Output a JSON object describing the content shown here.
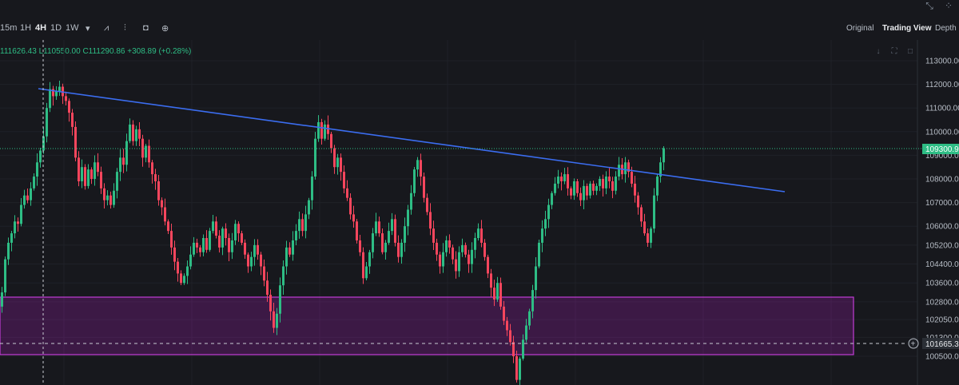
{
  "top_icons": [
    "collapse-icon",
    "grid-icon"
  ],
  "toolbar": {
    "timeframes": [
      "15m",
      "1H",
      "4H",
      "1D",
      "1W"
    ],
    "active_timeframe": "4H",
    "views": [
      "Original",
      "Trading View",
      "Depth"
    ],
    "active_view": "Trading View"
  },
  "ohlc": {
    "open": "111626.43",
    "low": "L110550.00",
    "close": "C111290.86",
    "change": "+308.89 (+0.28%)"
  },
  "chart_data": {
    "type": "candlestick",
    "y_ticks": [
      "113000.00",
      "112000.00",
      "111000.00",
      "110000.00",
      "109000.00",
      "108000.00",
      "107000.00",
      "106000.00",
      "105200.00",
      "104400.00",
      "103600.00",
      "102800.00",
      "102050.00",
      "101300.00",
      "100500.00"
    ],
    "last_price": "109300.99",
    "crosshair_price": "101665.36",
    "ylim": [
      100200,
      113400
    ],
    "closes": [
      103200,
      104600,
      105300,
      105700,
      106200,
      106100,
      106900,
      107300,
      107100,
      107600,
      108100,
      108700,
      109200,
      109800,
      111000,
      111800,
      111500,
      111700,
      111900,
      111500,
      111300,
      110800,
      110200,
      108900,
      107900,
      108500,
      107700,
      108400,
      108000,
      108700,
      108300,
      107600,
      107100,
      107300,
      106900,
      107500,
      108300,
      108900,
      108600,
      109600,
      110300,
      109600,
      110100,
      109700,
      108900,
      109400,
      108700,
      108200,
      107900,
      107100,
      106800,
      106200,
      105800,
      105100,
      104500,
      104000,
      103600,
      103900,
      104300,
      104800,
      105300,
      105100,
      104900,
      105500,
      105000,
      105800,
      106200,
      105600,
      105100,
      105900,
      105500,
      104900,
      105400,
      106100,
      105700,
      105300,
      104800,
      104300,
      104700,
      105200,
      104800,
      104300,
      103700,
      103100,
      102400,
      101700,
      102300,
      103500,
      104300,
      105100,
      104800,
      105400,
      105800,
      106300,
      105800,
      106500,
      107100,
      108100,
      109700,
      110400,
      109700,
      110300,
      109900,
      109300,
      108500,
      108900,
      108300,
      107600,
      107200,
      106500,
      106200,
      105400,
      104900,
      103800,
      104300,
      104900,
      105700,
      106200,
      105700,
      104900,
      105300,
      105800,
      106300,
      105300,
      104700,
      105300,
      106000,
      106700,
      107400,
      108400,
      108800,
      108100,
      107200,
      106600,
      105900,
      105300,
      104800,
      104300,
      104900,
      105400,
      105100,
      104600,
      104100,
      104900,
      105200,
      104800,
      104400,
      105000,
      105500,
      105900,
      105300,
      104700,
      104000,
      103400,
      102900,
      103600,
      102600,
      102000,
      101600,
      101100,
      100500,
      99500,
      100400,
      101200,
      101800,
      102400,
      103300,
      104300,
      105300,
      105900,
      106300,
      106900,
      107400,
      107800,
      108100,
      107900,
      108200,
      107600,
      107300,
      107900,
      107400,
      107100,
      107700,
      107300,
      107800,
      107500,
      107700,
      108000,
      107600,
      108100,
      107900,
      107500,
      108100,
      108600,
      108200,
      108700,
      108300,
      107800,
      107300,
      106800,
      106200,
      105700,
      105300,
      105900,
      107300,
      108100,
      108700,
      109300
    ]
  }
}
